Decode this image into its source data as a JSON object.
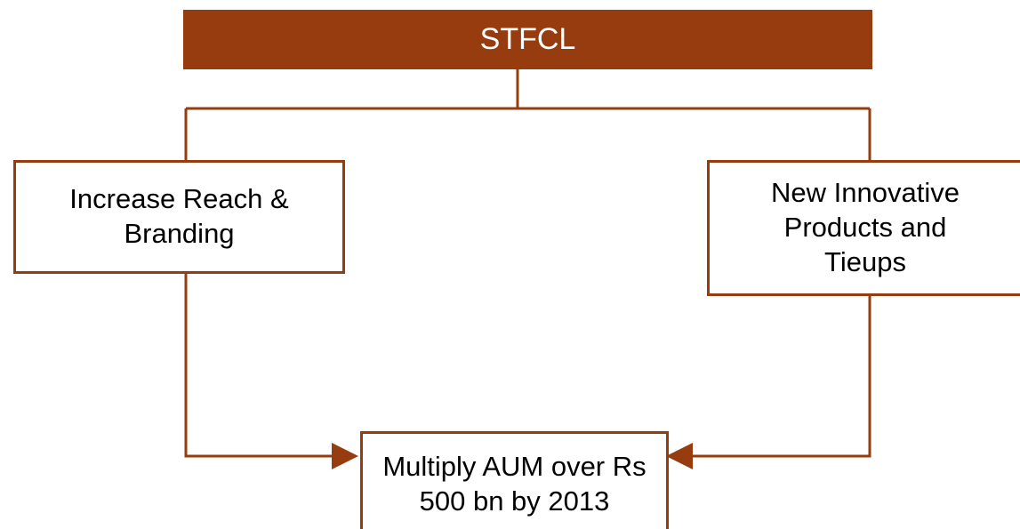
{
  "nodes": [
    {
      "label": "STFCL"
    },
    {
      "label": "Increase Reach & Branding"
    },
    {
      "label": "New Innovative Products and Tieups"
    },
    {
      "label": "Multiply AUM over Rs 500 bn by 2013"
    }
  ]
}
